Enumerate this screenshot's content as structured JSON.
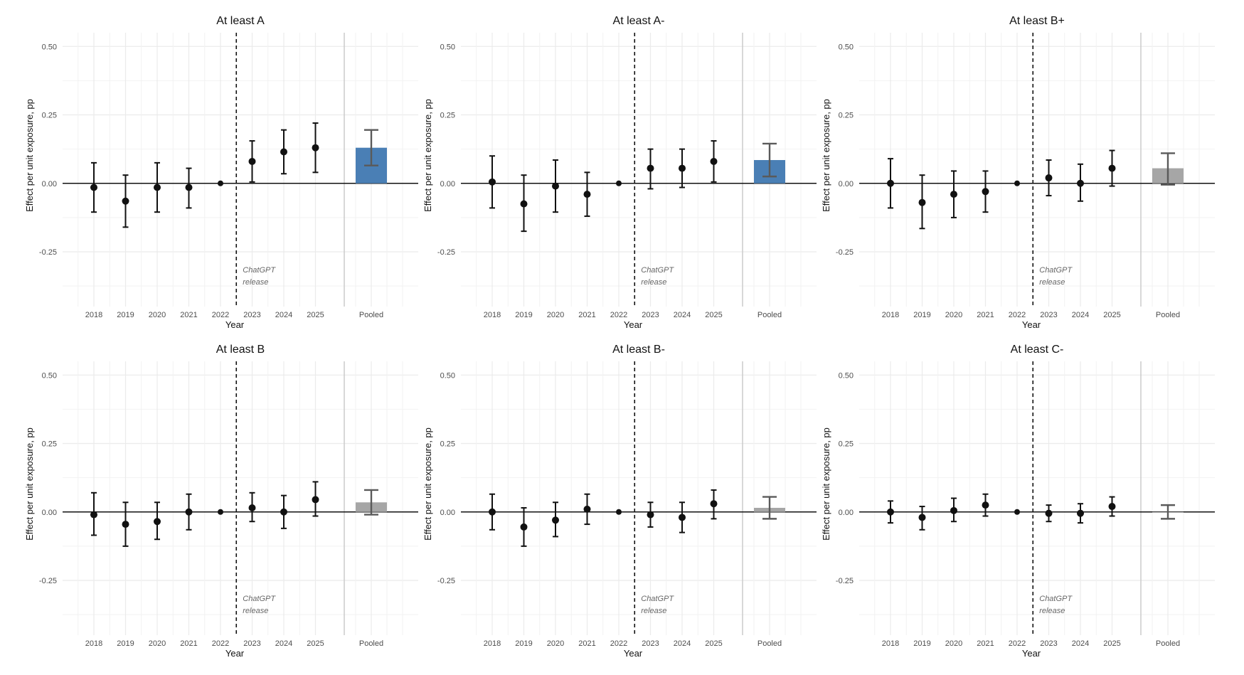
{
  "figure": {
    "common": {
      "xlabel": "Year",
      "ylabel": "Effect per unit exposure, pp",
      "x_categories": [
        "2018",
        "2019",
        "2020",
        "2021",
        "2022",
        "2023",
        "2024",
        "2025",
        "Pooled"
      ],
      "y_ticks": [
        0.5,
        0.25,
        0.0,
        -0.25
      ],
      "y_tick_labels": [
        "0.50",
        "0.25",
        "0.00",
        "-0.25"
      ],
      "ylim": [
        -0.45,
        0.55
      ],
      "vline_between": [
        "2022",
        "2023"
      ],
      "annotation": [
        "ChatGPT",
        "release"
      ],
      "grid": true,
      "colors": {
        "point": "#111111",
        "pooled_significant": "#4a7fb5",
        "pooled_nonsignificant": "#a6a6a6",
        "pooled_errorbar": "#5a5a5a",
        "grid": "#ebebeb"
      }
    }
  },
  "chart_data": [
    {
      "type": "scatter",
      "title": "At least A",
      "xlabel": "Year",
      "ylabel": "Effect per unit exposure, pp",
      "categories": [
        "2018",
        "2019",
        "2020",
        "2021",
        "2022",
        "2023",
        "2024",
        "2025"
      ],
      "estimates": [
        -0.015,
        -0.065,
        -0.015,
        -0.015,
        0.0,
        0.08,
        0.115,
        0.13
      ],
      "ci_low": [
        -0.105,
        -0.16,
        -0.105,
        -0.09,
        0.0,
        0.005,
        0.035,
        0.04
      ],
      "ci_high": [
        0.075,
        0.03,
        0.075,
        0.055,
        0.0,
        0.155,
        0.195,
        0.22
      ],
      "pooled": {
        "label": "Pooled",
        "value": 0.13,
        "ci_low": 0.065,
        "ci_high": 0.195,
        "significant": true
      },
      "ylim": [
        -0.45,
        0.55
      ]
    },
    {
      "type": "scatter",
      "title": "At least A-",
      "xlabel": "Year",
      "ylabel": "Effect per unit exposure, pp",
      "categories": [
        "2018",
        "2019",
        "2020",
        "2021",
        "2022",
        "2023",
        "2024",
        "2025"
      ],
      "estimates": [
        0.005,
        -0.075,
        -0.01,
        -0.04,
        0.0,
        0.055,
        0.055,
        0.08
      ],
      "ci_low": [
        -0.09,
        -0.175,
        -0.105,
        -0.12,
        0.0,
        -0.02,
        -0.015,
        0.005
      ],
      "ci_high": [
        0.1,
        0.03,
        0.085,
        0.04,
        0.0,
        0.125,
        0.125,
        0.155
      ],
      "pooled": {
        "label": "Pooled",
        "value": 0.085,
        "ci_low": 0.025,
        "ci_high": 0.145,
        "significant": true
      },
      "ylim": [
        -0.45,
        0.55
      ]
    },
    {
      "type": "scatter",
      "title": "At least B+",
      "xlabel": "Year",
      "ylabel": "Effect per unit exposure, pp",
      "categories": [
        "2018",
        "2019",
        "2020",
        "2021",
        "2022",
        "2023",
        "2024",
        "2025"
      ],
      "estimates": [
        0.0,
        -0.07,
        -0.04,
        -0.03,
        0.0,
        0.02,
        0.0,
        0.055
      ],
      "ci_low": [
        -0.09,
        -0.165,
        -0.125,
        -0.105,
        0.0,
        -0.045,
        -0.065,
        -0.01
      ],
      "ci_high": [
        0.09,
        0.03,
        0.045,
        0.045,
        0.0,
        0.085,
        0.07,
        0.12
      ],
      "pooled": {
        "label": "Pooled",
        "value": 0.055,
        "ci_low": -0.005,
        "ci_high": 0.11,
        "significant": false
      },
      "ylim": [
        -0.45,
        0.55
      ]
    },
    {
      "type": "scatter",
      "title": "At least B",
      "xlabel": "Year",
      "ylabel": "Effect per unit exposure, pp",
      "categories": [
        "2018",
        "2019",
        "2020",
        "2021",
        "2022",
        "2023",
        "2024",
        "2025"
      ],
      "estimates": [
        -0.01,
        -0.045,
        -0.035,
        0.0,
        0.0,
        0.015,
        0.0,
        0.045
      ],
      "ci_low": [
        -0.085,
        -0.125,
        -0.1,
        -0.065,
        0.0,
        -0.035,
        -0.06,
        -0.015
      ],
      "ci_high": [
        0.07,
        0.035,
        0.035,
        0.065,
        0.0,
        0.07,
        0.06,
        0.11
      ],
      "pooled": {
        "label": "Pooled",
        "value": 0.035,
        "ci_low": -0.01,
        "ci_high": 0.08,
        "significant": false
      },
      "ylim": [
        -0.45,
        0.55
      ]
    },
    {
      "type": "scatter",
      "title": "At least B-",
      "xlabel": "Year",
      "ylabel": "Effect per unit exposure, pp",
      "categories": [
        "2018",
        "2019",
        "2020",
        "2021",
        "2022",
        "2023",
        "2024",
        "2025"
      ],
      "estimates": [
        0.0,
        -0.055,
        -0.03,
        0.01,
        0.0,
        -0.01,
        -0.02,
        0.03
      ],
      "ci_low": [
        -0.065,
        -0.125,
        -0.09,
        -0.045,
        0.0,
        -0.055,
        -0.075,
        -0.025
      ],
      "ci_high": [
        0.065,
        0.015,
        0.035,
        0.065,
        0.0,
        0.035,
        0.035,
        0.08
      ],
      "pooled": {
        "label": "Pooled",
        "value": 0.015,
        "ci_low": -0.025,
        "ci_high": 0.055,
        "significant": false
      },
      "ylim": [
        -0.45,
        0.55
      ]
    },
    {
      "type": "scatter",
      "title": "At least C-",
      "xlabel": "Year",
      "ylabel": "Effect per unit exposure, pp",
      "categories": [
        "2018",
        "2019",
        "2020",
        "2021",
        "2022",
        "2023",
        "2024",
        "2025"
      ],
      "estimates": [
        0.0,
        -0.02,
        0.005,
        0.025,
        0.0,
        -0.005,
        -0.005,
        0.02
      ],
      "ci_low": [
        -0.04,
        -0.065,
        -0.035,
        -0.015,
        0.0,
        -0.035,
        -0.04,
        -0.015
      ],
      "ci_high": [
        0.04,
        0.02,
        0.05,
        0.065,
        0.0,
        0.025,
        0.03,
        0.055
      ],
      "pooled": {
        "label": "Pooled",
        "value": 0.0,
        "ci_low": -0.025,
        "ci_high": 0.025,
        "significant": false
      },
      "ylim": [
        -0.45,
        0.55
      ]
    }
  ]
}
